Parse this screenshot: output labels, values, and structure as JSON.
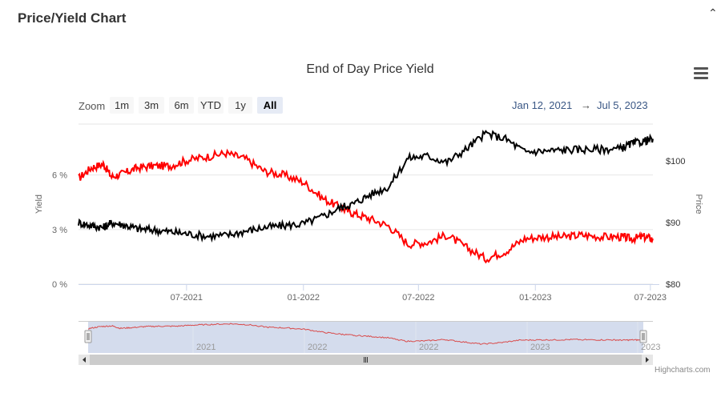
{
  "panel": {
    "title": "Price/Yield Chart",
    "collapse_icon": "chevron-up-icon"
  },
  "menu": {
    "icon": "hamburger-menu-icon"
  },
  "range_selector": {
    "zoom_label": "Zoom",
    "buttons": [
      "1m",
      "3m",
      "6m",
      "YTD",
      "1y",
      "All"
    ],
    "selected": "All",
    "from": "Jan 12, 2021",
    "arrow": "→",
    "to": "Jul 5, 2023"
  },
  "credits": "Highcharts.com",
  "chart_data": {
    "type": "line",
    "title": "End of Day Price Yield",
    "x_ticks": [
      "07-2021",
      "01-2022",
      "07-2022",
      "01-2023",
      "07-2023"
    ],
    "y_left": {
      "label": "Yield",
      "ticks": [
        "0 %",
        "3 %",
        "6 %"
      ],
      "range": [
        0,
        8.8
      ]
    },
    "y_right": {
      "label": "Price",
      "ticks": [
        "$80",
        "$90",
        "$100"
      ],
      "range": [
        80,
        106
      ]
    },
    "grid": true,
    "colors": {
      "yield": "#ff0000",
      "price": "#000000",
      "navigator_line": "#d94a4a",
      "navigator_mask": "#cdd6ea"
    },
    "x_range": [
      "2021-01-12",
      "2023-07-05"
    ],
    "series": [
      {
        "axis": "left",
        "color": "#ff0000",
        "points": [
          [
            "2021-01-12",
            5.8
          ],
          [
            "2021-02-01",
            6.4
          ],
          [
            "2021-02-20",
            6.6
          ],
          [
            "2021-03-05",
            5.9
          ],
          [
            "2021-03-25",
            6.1
          ],
          [
            "2021-04-15",
            6.4
          ],
          [
            "2021-05-10",
            6.5
          ],
          [
            "2021-06-05",
            6.5
          ],
          [
            "2021-07-01",
            6.8
          ],
          [
            "2021-08-01",
            7.0
          ],
          [
            "2021-09-01",
            7.2
          ],
          [
            "2021-10-01",
            6.9
          ],
          [
            "2021-11-01",
            6.2
          ],
          [
            "2021-12-01",
            6.0
          ],
          [
            "2022-01-01",
            5.6
          ],
          [
            "2022-02-01",
            4.7
          ],
          [
            "2022-03-01",
            4.2
          ],
          [
            "2022-03-20",
            3.9
          ],
          [
            "2022-04-15",
            3.6
          ],
          [
            "2022-05-15",
            3.2
          ],
          [
            "2022-06-15",
            2.2
          ],
          [
            "2022-07-15",
            2.3
          ],
          [
            "2022-08-15",
            2.7
          ],
          [
            "2022-09-15",
            2.0
          ],
          [
            "2022-10-15",
            1.4
          ],
          [
            "2022-11-15",
            1.8
          ],
          [
            "2022-12-15",
            2.5
          ],
          [
            "2023-01-15",
            2.6
          ],
          [
            "2023-02-15",
            2.6
          ],
          [
            "2023-03-15",
            2.7
          ],
          [
            "2023-04-15",
            2.6
          ],
          [
            "2023-05-15",
            2.6
          ],
          [
            "2023-06-01",
            2.5
          ],
          [
            "2023-06-20",
            2.6
          ],
          [
            "2023-07-05",
            2.5
          ]
        ]
      },
      {
        "axis": "right",
        "color": "#000000",
        "points": [
          [
            "2021-01-12",
            90.0
          ],
          [
            "2021-02-01",
            89.5
          ],
          [
            "2021-02-20",
            89.2
          ],
          [
            "2021-03-05",
            90.0
          ],
          [
            "2021-03-25",
            89.6
          ],
          [
            "2021-04-15",
            89.0
          ],
          [
            "2021-05-10",
            88.8
          ],
          [
            "2021-06-05",
            88.5
          ],
          [
            "2021-07-01",
            88.2
          ],
          [
            "2021-08-01",
            87.8
          ],
          [
            "2021-09-01",
            87.9
          ],
          [
            "2021-10-01",
            88.6
          ],
          [
            "2021-11-01",
            89.2
          ],
          [
            "2021-12-01",
            89.5
          ],
          [
            "2022-01-01",
            89.8
          ],
          [
            "2022-02-01",
            91.0
          ],
          [
            "2022-03-01",
            92.5
          ],
          [
            "2022-03-20",
            93.0
          ],
          [
            "2022-04-15",
            94.5
          ],
          [
            "2022-05-15",
            95.8
          ],
          [
            "2022-06-15",
            100.5
          ],
          [
            "2022-07-15",
            100.8
          ],
          [
            "2022-08-15",
            99.8
          ],
          [
            "2022-09-15",
            102.0
          ],
          [
            "2022-10-15",
            104.5
          ],
          [
            "2022-11-15",
            103.6
          ],
          [
            "2022-12-15",
            101.5
          ],
          [
            "2023-01-15",
            101.6
          ],
          [
            "2023-02-15",
            101.8
          ],
          [
            "2023-03-15",
            101.9
          ],
          [
            "2023-04-15",
            101.9
          ],
          [
            "2023-05-15",
            102.0
          ],
          [
            "2023-06-01",
            102.8
          ],
          [
            "2023-06-20",
            103.2
          ],
          [
            "2023-07-05",
            103.6
          ]
        ]
      }
    ],
    "navigator": {
      "labels": [
        "2021",
        "2022",
        "2022",
        "2023",
        "2023"
      ]
    }
  }
}
